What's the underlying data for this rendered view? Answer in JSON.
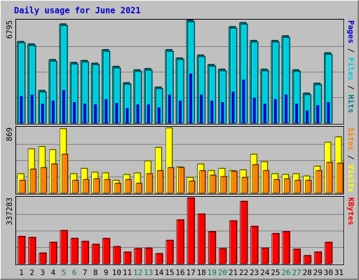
{
  "colors": {
    "background": "#c0c0c0",
    "title": "#0000cc",
    "hits": "#008080",
    "hits_light": "#00aaaa",
    "files": "#00ccdd",
    "files_light": "#00ffff",
    "pages": "#0000cc",
    "visits": "#ffff00",
    "visits_dark": "#999900",
    "sites": "#ff8000",
    "sites_dark": "#995000",
    "kbytes": "#ff0000",
    "kbytes_dark": "#990000",
    "weekday": "#000000",
    "weekend": "#007f56"
  },
  "chart_data": {
    "type": "bar",
    "title": "Daily usage for June 2021",
    "categories": [
      "1",
      "2",
      "3",
      "4",
      "5",
      "6",
      "7",
      "8",
      "9",
      "10",
      "11",
      "12",
      "13",
      "14",
      "15",
      "16",
      "17",
      "18",
      "19",
      "20",
      "21",
      "22",
      "23",
      "24",
      "25",
      "26",
      "27",
      "28",
      "29",
      "30",
      "31"
    ],
    "weekend_days": [
      "5",
      "6",
      "12",
      "13",
      "19",
      "20",
      "26",
      "27"
    ],
    "panels": [
      {
        "id": "top",
        "max_label": "6795",
        "ylim": [
          0,
          6795
        ],
        "side_labels": [
          {
            "text": "Hits",
            "color": "#008080"
          },
          {
            "text": "Files",
            "color": "#00ccdd"
          },
          {
            "text": "Pages",
            "color": "#0000cc"
          }
        ],
        "series": [
          {
            "name": "Hits",
            "values": [
              5420,
              5260,
              2170,
              4220,
              6590,
              4030,
              4160,
              3980,
              4880,
              3770,
              2680,
              3540,
              3620,
              2390,
              4880,
              4330,
              6840,
              4520,
              3890,
              3580,
              6410,
              6680,
              5490,
              3580,
              5490,
              5800,
              3540,
              1990,
              2650,
              4670,
              0
            ]
          },
          {
            "name": "Files",
            "values": [
              5340,
              5160,
              2070,
              4120,
              6490,
              3930,
              4060,
              3880,
              4780,
              3670,
              2580,
              3440,
              3520,
              2290,
              4780,
              4230,
              6740,
              4420,
              3790,
              3480,
              6310,
              6580,
              5390,
              3480,
              5390,
              5700,
              3440,
              1890,
              2550,
              4570,
              0
            ]
          },
          {
            "name": "Pages",
            "values": [
              1800,
              1900,
              1300,
              1500,
              2200,
              1400,
              1300,
              1250,
              1600,
              1350,
              1000,
              1250,
              1250,
              1050,
              1900,
              1500,
              3300,
              1900,
              1500,
              1400,
              2100,
              2900,
              1700,
              1300,
              1600,
              1900,
              1300,
              850,
              1200,
              1400,
              0
            ]
          }
        ]
      },
      {
        "id": "middle",
        "max_label": "869",
        "ylim": [
          0,
          869
        ],
        "side_labels": [
          {
            "text": "Visits",
            "color": "#ffff00"
          },
          {
            "text": "Sites",
            "color": "#ff8000"
          }
        ],
        "series": [
          {
            "name": "Visits",
            "values": [
              260,
              590,
              620,
              580,
              860,
              260,
              330,
              280,
              270,
              170,
              250,
              270,
              430,
              610,
              870,
              350,
              210,
              390,
              300,
              330,
              300,
              310,
              520,
              420,
              260,
              250,
              260,
              230,
              360,
              680,
              750
            ]
          },
          {
            "name": "Sites",
            "values": [
              170,
              320,
              340,
              390,
              520,
              170,
              180,
              190,
              180,
              130,
              180,
              130,
              260,
              300,
              340,
              340,
              160,
              300,
              240,
              220,
              290,
              210,
              380,
              300,
              180,
              190,
              170,
              170,
              300,
              410,
              400
            ]
          }
        ]
      },
      {
        "id": "bottom",
        "max_label": "337283",
        "ylim": [
          0,
          337283
        ],
        "side_labels": [
          {
            "text": "KBytes",
            "color": "#ff0000"
          }
        ],
        "series": [
          {
            "name": "KBytes",
            "values": [
              140000,
              135000,
              55000,
              110000,
              170000,
              130000,
              115000,
              100000,
              130000,
              88000,
              60000,
              78000,
              80000,
              52000,
              120000,
              225000,
              337283,
              255000,
              165000,
              78000,
              220000,
              320000,
              192000,
              80000,
              155000,
              165000,
              75000,
              42000,
              60000,
              110000,
              0
            ]
          }
        ]
      }
    ]
  }
}
